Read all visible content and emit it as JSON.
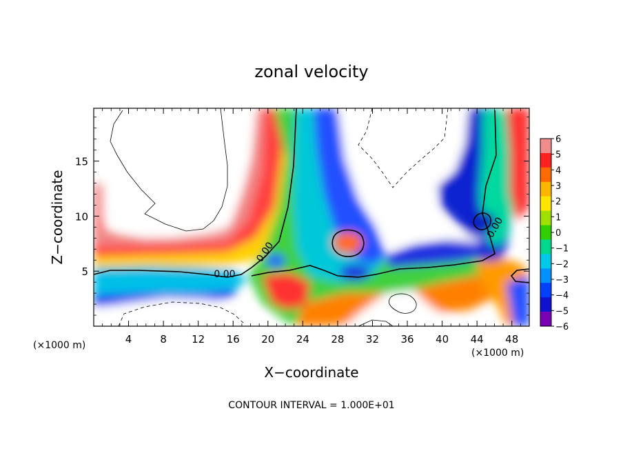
{
  "chart_data": {
    "type": "heatmap",
    "title": "zonal velocity",
    "xlabel": "X−coordinate",
    "ylabel": "Z−coordinate",
    "x_unit": "(×1000 m)",
    "x_ticks": [
      4,
      8,
      12,
      16,
      20,
      24,
      28,
      32,
      36,
      40,
      44,
      48
    ],
    "y_ticks": [
      5,
      10,
      15
    ],
    "xlim": [
      0,
      50
    ],
    "ylim": [
      0,
      19.8
    ],
    "footer": "CONTOUR INTERVAL = 1.000E+01",
    "colorbar": {
      "ticks": [
        6,
        5,
        4,
        3,
        2,
        1,
        0,
        -1,
        -2,
        -3,
        -4,
        -5,
        -6
      ],
      "tick_labels": [
        "6",
        "5",
        "4",
        "3",
        "2",
        "1",
        "0",
        "−1",
        "−2",
        "−3",
        "−4",
        "−5",
        "−6"
      ],
      "range": [
        -6,
        6
      ],
      "colors_top_to_bottom": [
        "#f08c8c",
        "#ff2020",
        "#ff6a00",
        "#ffb400",
        "#ffe600",
        "#a0e000",
        "#30d000",
        "#00d890",
        "#00c8e8",
        "#0090ff",
        "#0040ff",
        "#1010d0",
        "#7a00b4"
      ]
    },
    "contour_labels": [
      "0.00",
      "0.00",
      "0.00"
    ],
    "features": [
      {
        "desc": "positive band (red) above a negative band (blue) near z 3–6 across x 0–18"
      },
      {
        "desc": "column of negative velocity rising from surface near x 22–34"
      },
      {
        "desc": "strong positive column near x 17–22 extending to top"
      },
      {
        "desc": "negative column near x 34–46 near the top right"
      }
    ]
  }
}
